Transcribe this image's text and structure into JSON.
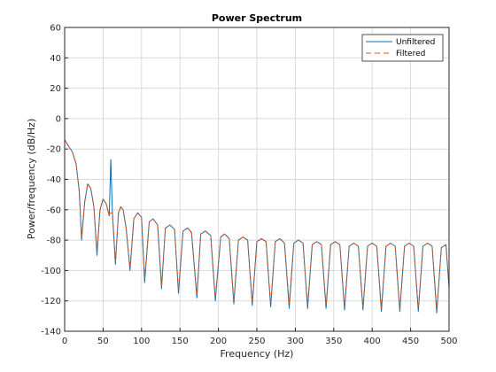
{
  "chart_data": {
    "type": "line",
    "title": "Power Spectrum",
    "xlabel": "Frequency (Hz)",
    "ylabel": "Power/frequency (dB/Hz)",
    "xlim": [
      0,
      500
    ],
    "ylim": [
      -140,
      60
    ],
    "xticks": [
      0,
      50,
      100,
      150,
      200,
      250,
      300,
      350,
      400,
      450,
      500
    ],
    "yticks": [
      60,
      40,
      20,
      0,
      -20,
      -40,
      -60,
      -80,
      -100,
      -120,
      -140
    ],
    "grid": true,
    "legend_position": "top-right",
    "colors": {
      "unfiltered": "#0072BD",
      "filtered": "#D95319"
    },
    "series": [
      {
        "name": "Unfiltered",
        "style": "solid",
        "x": [
          0,
          5,
          10,
          15,
          19,
          22,
          26,
          30,
          34,
          38,
          42,
          46,
          50,
          54,
          58,
          60,
          62,
          66,
          70,
          73,
          76,
          80,
          85,
          90,
          95,
          100,
          104,
          110,
          115,
          121,
          126,
          131,
          137,
          143,
          148,
          154,
          160,
          165,
          172,
          177,
          183,
          190,
          196,
          203,
          208,
          214,
          220,
          226,
          232,
          238,
          244,
          250,
          256,
          262,
          268,
          274,
          280,
          286,
          292,
          298,
          304,
          310,
          316,
          322,
          328,
          334,
          340,
          346,
          352,
          358,
          364,
          370,
          376,
          382,
          388,
          394,
          400,
          406,
          412,
          418,
          424,
          430,
          436,
          442,
          448,
          454,
          460,
          466,
          472,
          478,
          484,
          490,
          496,
          500
        ],
        "y": [
          -14,
          -18,
          -22,
          -30,
          -48,
          -80,
          -55,
          -43,
          -46,
          -58,
          -90,
          -60,
          -53,
          -56,
          -64,
          -27,
          -60,
          -96,
          -62,
          -58,
          -60,
          -72,
          -100,
          -66,
          -62,
          -65,
          -108,
          -68,
          -66,
          -70,
          -112,
          -72,
          -70,
          -73,
          -115,
          -74,
          -72,
          -75,
          -118,
          -76,
          -74,
          -77,
          -120,
          -78,
          -76,
          -79,
          -122,
          -80,
          -78,
          -80,
          -123,
          -81,
          -79,
          -81,
          -124,
          -81,
          -79,
          -82,
          -125,
          -82,
          -80,
          -82,
          -125,
          -83,
          -81,
          -83,
          -125,
          -83,
          -81,
          -83,
          -126,
          -84,
          -82,
          -84,
          -126,
          -84,
          -82,
          -84,
          -127,
          -84,
          -82,
          -84,
          -127,
          -84,
          -82,
          -84,
          -127,
          -84,
          -82,
          -84,
          -128,
          -85,
          -83,
          -112
        ]
      },
      {
        "name": "Filtered",
        "style": "dashed",
        "x": [
          0,
          5,
          10,
          15,
          19,
          22,
          26,
          30,
          34,
          38,
          42,
          46,
          50,
          54,
          58,
          60,
          62,
          66,
          70,
          73,
          76,
          80,
          85,
          90,
          95,
          100,
          104,
          110,
          115,
          121,
          126,
          131,
          137,
          143,
          148,
          154,
          160,
          165,
          172,
          177,
          183,
          190,
          196,
          203,
          208,
          214,
          220,
          226,
          232,
          238,
          244,
          250,
          256,
          262,
          268,
          274,
          280,
          286,
          292,
          298,
          304,
          310,
          316,
          322,
          328,
          334,
          340,
          346,
          352,
          358,
          364,
          370,
          376,
          382,
          388,
          394,
          400,
          406,
          412,
          418,
          424,
          430,
          436,
          442,
          448,
          454,
          460,
          466,
          472,
          478,
          484,
          490,
          496,
          500
        ],
        "y": [
          -14,
          -18,
          -22,
          -30,
          -48,
          -78,
          -55,
          -43,
          -46,
          -58,
          -88,
          -60,
          -53,
          -56,
          -64,
          -62,
          -62,
          -94,
          -62,
          -58,
          -60,
          -72,
          -98,
          -66,
          -62,
          -65,
          -105,
          -68,
          -66,
          -70,
          -110,
          -72,
          -70,
          -73,
          -113,
          -74,
          -72,
          -75,
          -116,
          -76,
          -74,
          -77,
          -118,
          -78,
          -76,
          -79,
          -120,
          -80,
          -78,
          -80,
          -121,
          -81,
          -79,
          -81,
          -122,
          -81,
          -79,
          -82,
          -122,
          -82,
          -80,
          -82,
          -123,
          -83,
          -81,
          -83,
          -123,
          -83,
          -81,
          -83,
          -124,
          -84,
          -82,
          -84,
          -124,
          -84,
          -82,
          -84,
          -125,
          -84,
          -82,
          -84,
          -125,
          -84,
          -82,
          -84,
          -125,
          -84,
          -82,
          -84,
          -126,
          -85,
          -83,
          -110
        ]
      }
    ]
  }
}
